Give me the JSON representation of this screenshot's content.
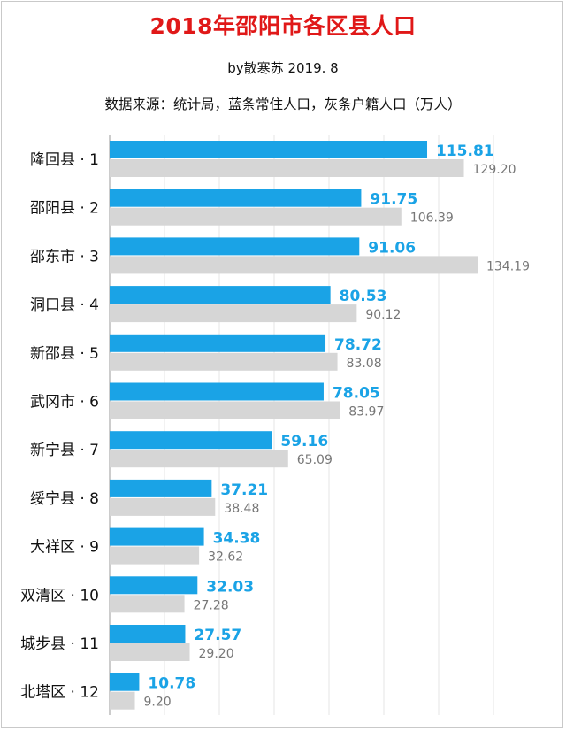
{
  "title": "2018年邵阳市各区县人口",
  "subtitle": "by散寒苏  2019. 8",
  "note": "数据来源：统计局，蓝条常住人口，灰条户籍人口（万人）",
  "colors": {
    "primary": "#1aa3e6",
    "secondary": "#d6d6d6",
    "title": "#e01818",
    "primary_label": "#1aa3e6",
    "secondary_label": "#777777"
  },
  "chart_data": {
    "type": "bar",
    "orientation": "horizontal",
    "title": "2018年邵阳市各区县人口",
    "categories": [
      "隆回县 · 1",
      "邵阳县 · 2",
      "邵东市 · 3",
      "洞口县 · 4",
      "新邵县 · 5",
      "武冈市 · 6",
      "新宁县 · 7",
      "绥宁县 · 8",
      "大祥区 · 9",
      "双清区 · 10",
      "城步县 · 11",
      "北塔区 · 12"
    ],
    "series": [
      {
        "name": "蓝条常住人口",
        "values": [
          115.81,
          91.75,
          91.06,
          80.53,
          78.72,
          78.05,
          59.16,
          37.21,
          34.38,
          32.03,
          27.57,
          10.78
        ],
        "labels": [
          "115.81",
          "91.75",
          "91.06",
          "80.53",
          "78.72",
          "78.05",
          "59.16",
          "37.21",
          "34.38",
          "32.03",
          "27.57",
          "10.78"
        ]
      },
      {
        "name": "灰条户籍人口",
        "values": [
          129.2,
          106.39,
          134.19,
          90.12,
          83.08,
          83.97,
          65.09,
          38.48,
          32.62,
          27.28,
          29.2,
          9.2
        ],
        "labels": [
          "129.20",
          "106.39",
          "134.19",
          "90.12",
          "83.08",
          "83.97",
          "65.09",
          "38.48",
          "32.62",
          "27.28",
          "29.20",
          "9.20"
        ]
      }
    ],
    "xlim": [
      0,
      150
    ],
    "grid": "vertical",
    "legend": "none"
  }
}
